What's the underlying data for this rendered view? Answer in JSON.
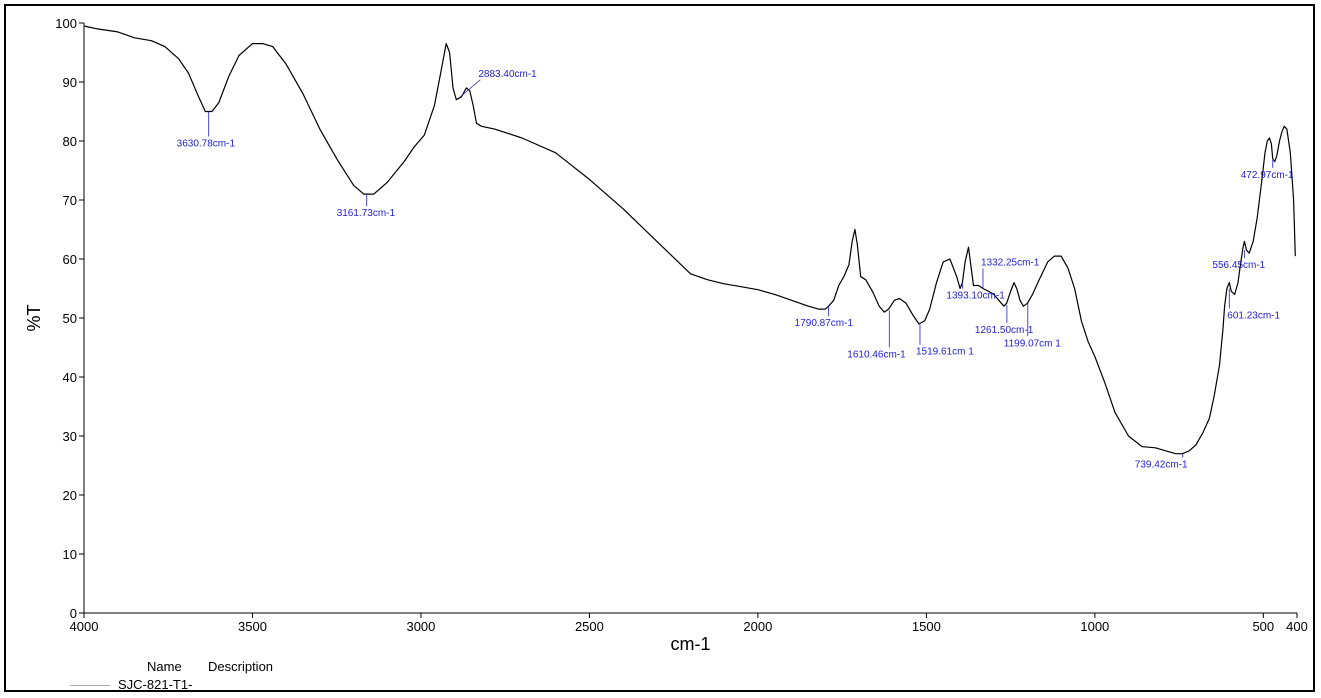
{
  "chart_data": {
    "type": "line",
    "xlabel": "cm-1",
    "ylabel": "%T",
    "xlim": [
      4000,
      400
    ],
    "ylim": [
      0,
      100
    ],
    "x_reversed": true,
    "grid": false,
    "x_ticks": [
      4000,
      3500,
      3000,
      2500,
      2000,
      1500,
      1000,
      500,
      400
    ],
    "y_ticks": [
      0,
      10,
      20,
      30,
      40,
      50,
      60,
      70,
      80,
      90,
      100
    ],
    "line_color": "#000000",
    "annotation_color": "#1f1fd6",
    "series": [
      {
        "x": [
          4000,
          3960,
          3900,
          3850,
          3800,
          3760,
          3720,
          3690,
          3660,
          3640,
          3620,
          3600,
          3570,
          3540,
          3500,
          3470,
          3440,
          3400,
          3350,
          3300,
          3250,
          3200,
          3170,
          3140,
          3100,
          3050,
          3020,
          2990,
          2960,
          2940,
          2925,
          2915,
          2905,
          2895,
          2880,
          2865,
          2855,
          2845,
          2835,
          2820,
          2780,
          2700,
          2600,
          2500,
          2400,
          2300,
          2200,
          2150,
          2100,
          2050,
          2000,
          1950,
          1900,
          1850,
          1820,
          1800,
          1790,
          1775,
          1760,
          1745,
          1730,
          1720,
          1712,
          1705,
          1695,
          1680,
          1660,
          1640,
          1625,
          1612,
          1595,
          1580,
          1560,
          1540,
          1522,
          1505,
          1490,
          1470,
          1450,
          1430,
          1410,
          1400,
          1393,
          1385,
          1375,
          1368,
          1360,
          1345,
          1332,
          1315,
          1300,
          1285,
          1270,
          1262,
          1250,
          1240,
          1232,
          1222,
          1212,
          1200,
          1185,
          1165,
          1140,
          1120,
          1100,
          1080,
          1060,
          1040,
          1020,
          1000,
          970,
          940,
          900,
          860,
          820,
          790,
          760,
          740,
          720,
          700,
          680,
          660,
          645,
          630,
          620,
          615,
          608,
          601,
          595,
          585,
          575,
          568,
          560,
          556,
          550,
          542,
          530,
          518,
          505,
          495,
          488,
          482,
          476,
          472,
          466,
          460,
          452,
          445,
          438,
          430,
          420,
          410,
          405
        ],
        "y": [
          99.5,
          99,
          98.5,
          97.5,
          97,
          96,
          94,
          91.5,
          87.5,
          85,
          85,
          86.5,
          91,
          94.5,
          96.5,
          96.5,
          96,
          93,
          88,
          82,
          77,
          72.5,
          71,
          71,
          73,
          76.5,
          79,
          81,
          86,
          92,
          96.5,
          95,
          89,
          87,
          87.5,
          89,
          88.5,
          86,
          83,
          82.5,
          82,
          80.5,
          78,
          73.5,
          68.5,
          63,
          57.5,
          56.5,
          55.8,
          55.3,
          54.8,
          54,
          53,
          52,
          51.5,
          51.5,
          52,
          53,
          55.5,
          57,
          59,
          63,
          65,
          62.5,
          57,
          56.5,
          54.5,
          52,
          51,
          51.5,
          53,
          53.3,
          52.5,
          50.5,
          49,
          49.5,
          51.5,
          56,
          59.5,
          60,
          57,
          55,
          56,
          59.5,
          62,
          59,
          55.5,
          55.5,
          55,
          54.5,
          54,
          53,
          52,
          52.5,
          54.5,
          56,
          55,
          53,
          52,
          52.5,
          54,
          56.5,
          59.5,
          60.5,
          60.5,
          58.5,
          55,
          49.5,
          46,
          43.5,
          39,
          34,
          30,
          28.2,
          28,
          27.5,
          27,
          27,
          27.5,
          28.5,
          30.5,
          33,
          37,
          42,
          48,
          52,
          55,
          56,
          54.5,
          54,
          56,
          59,
          62,
          63,
          61.5,
          61,
          63,
          67,
          73,
          78,
          80,
          80.5,
          79.5,
          77,
          76.5,
          77.5,
          80,
          81.5,
          82.5,
          82,
          78,
          70,
          60.5
        ]
      }
    ],
    "annotations": [
      {
        "label": "3630.78cm-1",
        "x": 3630,
        "y": 85
      },
      {
        "label": "2883.40cm-1",
        "x": 2883,
        "y": 87.5
      },
      {
        "label": "3161.73cm-1",
        "x": 3161,
        "y": 71
      },
      {
        "label": "1790.87cm-1",
        "x": 1790,
        "y": 52
      },
      {
        "label": "1610.46cm-1",
        "x": 1610,
        "y": 51.3
      },
      {
        "label": "1519.61cm 1",
        "x": 1519,
        "y": 49.2
      },
      {
        "label": "1393.10cm-1",
        "x": 1393,
        "y": 56
      },
      {
        "label": "1332.25cm-1",
        "x": 1332,
        "y": 55
      },
      {
        "label": "1261.50cm-1",
        "x": 1261,
        "y": 52.2
      },
      {
        "label": "1199.07cm 1",
        "x": 1199,
        "y": 52.5
      },
      {
        "label": "739.42cm-1",
        "x": 739,
        "y": 27
      },
      {
        "label": "601.23cm-1",
        "x": 601,
        "y": 55
      },
      {
        "label": "556.45cm-1",
        "x": 556,
        "y": 61.5
      },
      {
        "label": "472.97cm-1",
        "x": 472,
        "y": 76.8
      }
    ]
  },
  "legend": {
    "header_name": "Name",
    "header_description": "Description",
    "sample_name": "SJC-821-T1-"
  }
}
